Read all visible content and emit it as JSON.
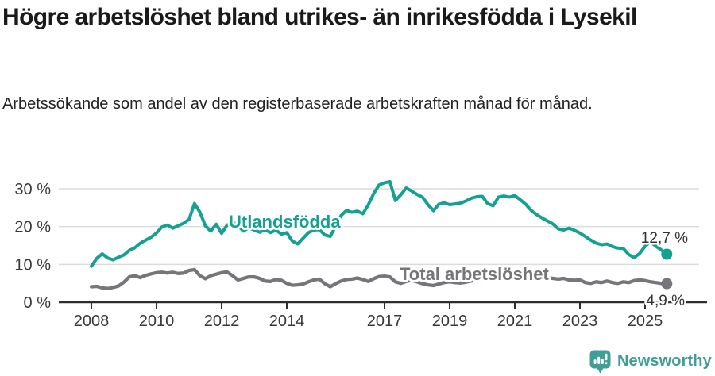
{
  "header": {
    "title": "Högre arbetslöshet bland utrikes- än inrikesfödda i Lysekil",
    "subtitle": "Arbetssökande som andel av den registerbaserade arbetskraften månad för månad."
  },
  "footer": {
    "brand": "Newsworthy",
    "brand_color": "#3f9e98",
    "logo_icon": "speech-bubble-bar-chart-icon"
  },
  "chart_data": {
    "type": "line",
    "title": "Högre arbetslöshet bland utrikes- än inrikesfödda i Lysekil",
    "subtitle": "Arbetssökande som andel av den registerbaserade arbetskraften månad för månad.",
    "unit": "%",
    "grid": "horizontal",
    "legend_position": "inline-labels",
    "x_tick_labels": [
      "2008",
      "2010",
      "2012",
      "2014",
      "2017",
      "2019",
      "2021",
      "2023",
      "2025"
    ],
    "x_tick_years": [
      2008,
      2010,
      2012,
      2014,
      2017,
      2019,
      2021,
      2023,
      2025
    ],
    "y_tick_labels": [
      "0 %",
      "10 %",
      "20 %",
      "30 %"
    ],
    "y_tick_values": [
      0,
      10,
      20,
      30
    ],
    "ylim": [
      0,
      33.5
    ],
    "x_start_year": 2008,
    "x_start_month": 1,
    "sample_interval_months": 2,
    "series": [
      {
        "id": "utlandsfodda",
        "name": "Utlandsfödda",
        "color": "#14a193",
        "end_label": "12,7 %",
        "end_value": 12.7,
        "values": [
          9.5,
          11.6,
          12.8,
          11.7,
          11.2,
          11.9,
          12.5,
          13.7,
          14.4,
          15.6,
          16.4,
          17.2,
          18.3,
          19.9,
          20.4,
          19.6,
          20.2,
          20.9,
          21.9,
          26.1,
          23.8,
          20.2,
          18.8,
          20.6,
          18.2,
          20.4,
          21.5,
          20.3,
          18.8,
          19.7,
          19.1,
          18.5,
          19.2,
          18.4,
          19.1,
          18.0,
          18.4,
          16.2,
          15.4,
          16.9,
          18.4,
          19.1,
          19.2,
          17.8,
          17.4,
          20.1,
          22.9,
          24.3,
          23.8,
          24.1,
          23.4,
          25.7,
          28.7,
          31.0,
          31.6,
          31.9,
          26.9,
          28.4,
          30.2,
          29.4,
          28.5,
          27.8,
          25.8,
          24.2,
          25.9,
          26.3,
          25.8,
          26.0,
          26.2,
          26.8,
          27.5,
          27.9,
          28.0,
          26.1,
          25.5,
          27.8,
          28.1,
          27.8,
          28.2,
          27.1,
          25.9,
          24.3,
          23.2,
          22.3,
          21.5,
          20.7,
          19.4,
          19.1,
          19.6,
          19.0,
          18.3,
          17.4,
          16.4,
          15.6,
          15.2,
          15.4,
          14.7,
          14.3,
          14.2,
          12.6,
          11.8,
          12.9,
          14.8,
          16.0,
          14.8,
          13.8,
          12.7
        ]
      },
      {
        "id": "total-arbetsloshet",
        "name": "Total arbetslöshet",
        "color": "#76767a",
        "end_label": "4,9 %",
        "end_value": 4.9,
        "values": [
          4.1,
          4.2,
          3.8,
          3.6,
          3.9,
          4.3,
          5.3,
          6.7,
          7.0,
          6.5,
          7.1,
          7.5,
          7.8,
          7.9,
          7.7,
          7.9,
          7.6,
          7.7,
          8.4,
          8.6,
          7.0,
          6.2,
          7.0,
          7.4,
          7.8,
          8.0,
          7.0,
          5.9,
          6.3,
          6.7,
          6.7,
          6.3,
          5.6,
          5.5,
          6.0,
          5.8,
          5.0,
          4.5,
          4.6,
          4.8,
          5.4,
          5.9,
          6.1,
          4.9,
          4.1,
          4.9,
          5.6,
          6.0,
          6.1,
          6.4,
          6.0,
          5.5,
          6.2,
          6.8,
          6.9,
          6.7,
          5.4,
          5.0,
          5.5,
          5.8,
          5.4,
          4.9,
          4.6,
          4.4,
          4.8,
          5.2,
          5.4,
          5.2,
          5.1,
          5.3,
          5.6,
          5.9,
          6.1,
          6.4,
          6.6,
          6.4,
          6.2,
          6.1,
          6.3,
          6.5,
          6.2,
          5.9,
          6.1,
          6.4,
          6.5,
          6.3,
          6.1,
          6.3,
          5.9,
          5.8,
          5.9,
          5.2,
          5.0,
          5.4,
          5.2,
          5.6,
          5.2,
          5.0,
          5.4,
          5.2,
          5.7,
          5.9,
          5.7,
          5.4,
          5.2,
          5.0,
          4.9
        ]
      }
    ]
  }
}
